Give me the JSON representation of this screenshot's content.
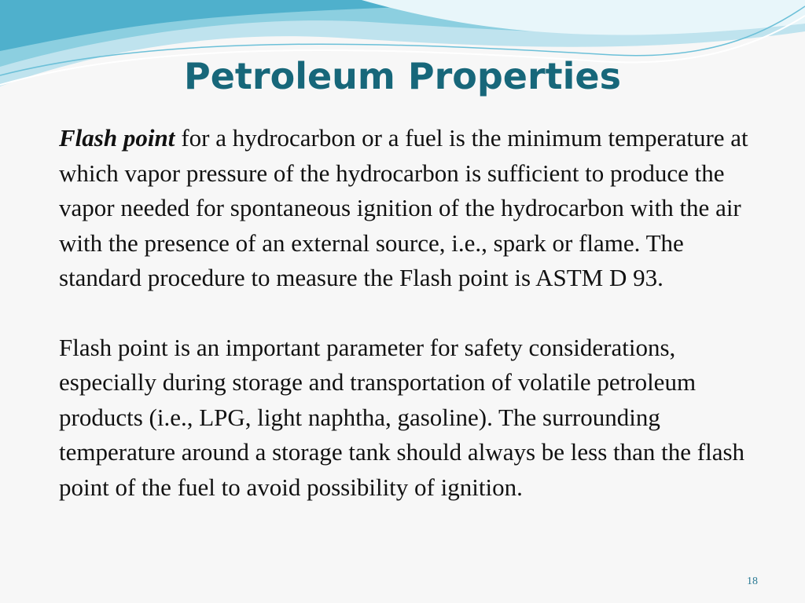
{
  "title": "Petroleum Properties",
  "paragraphs": [
    {
      "emphasis": "Flash point",
      "text": "for a hydrocarbon or a fuel is the minimum temperature at which vapor pressure of the hydrocarbon is sufficient to produce the vapor needed for spontaneous ignition of the hydrocarbon with the air with the presence of an external source, i.e., spark or flame. The standard procedure to measure the Flash point is ASTM D 93."
    },
    {
      "text": "Flash point is an important parameter for safety considerations, especially during storage and transportation of volatile petroleum products (i.e., LPG, light naphtha, gasoline). The surrounding temperature around a storage tank should always be less than the flash point of the fuel to avoid possibility of ignition."
    }
  ],
  "page_number": "18"
}
